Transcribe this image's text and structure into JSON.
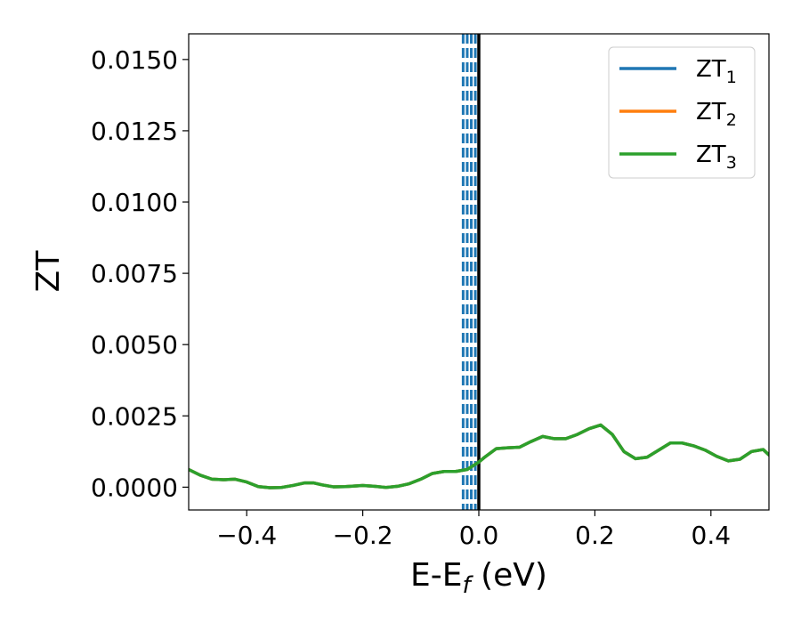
{
  "chart_data": {
    "type": "line",
    "title": "",
    "xlabel_main": "E-E",
    "xlabel_sub": "f",
    "xlabel_unit": " (eV)",
    "ylabel": "ZT",
    "xlim": [
      -0.5,
      0.5
    ],
    "ylim": [
      -0.0008,
      0.0159
    ],
    "xticks": [
      -0.4,
      -0.2,
      0.0,
      0.2,
      0.4
    ],
    "xtick_labels": [
      "−0.4",
      "−0.2",
      "0.0",
      "0.2",
      "0.4"
    ],
    "yticks": [
      0.0,
      0.0025,
      0.005,
      0.0075,
      0.01,
      0.0125,
      0.015
    ],
    "ytick_labels": [
      "0.0000",
      "0.0025",
      "0.0050",
      "0.0075",
      "0.0100",
      "0.0125",
      "0.0150"
    ],
    "grid": false,
    "legend_position": "top-right",
    "x": [
      -0.5,
      -0.48,
      -0.46,
      -0.44,
      -0.42,
      -0.4,
      -0.38,
      -0.36,
      -0.34,
      -0.32,
      -0.3,
      -0.285,
      -0.27,
      -0.25,
      -0.23,
      -0.2,
      -0.18,
      -0.16,
      -0.14,
      -0.12,
      -0.1,
      -0.08,
      -0.06,
      -0.04,
      -0.02,
      0.0,
      0.01,
      0.03,
      0.05,
      0.07,
      0.09,
      0.11,
      0.13,
      0.15,
      0.17,
      0.19,
      0.21,
      0.23,
      0.25,
      0.27,
      0.29,
      0.31,
      0.33,
      0.35,
      0.37,
      0.39,
      0.41,
      0.43,
      0.45,
      0.47,
      0.49,
      0.5
    ],
    "series": [
      {
        "name": "ZT",
        "name_sub": "1",
        "color": "#1f77b4",
        "values": [
          0.00062,
          0.00042,
          0.00028,
          0.00026,
          0.00028,
          0.00018,
          2e-05,
          -2e-05,
          -1e-05,
          6e-05,
          0.00015,
          0.00015,
          8e-05,
          1e-05,
          2e-05,
          6e-05,
          3e-05,
          -1e-05,
          3e-05,
          0.00012,
          0.00028,
          0.00048,
          0.00055,
          0.00055,
          0.00062,
          0.00088,
          0.00105,
          0.00135,
          0.00138,
          0.0014,
          0.0016,
          0.00178,
          0.0017,
          0.0017,
          0.00185,
          0.00205,
          0.00218,
          0.00185,
          0.00125,
          0.001,
          0.00105,
          0.0013,
          0.00155,
          0.00155,
          0.00145,
          0.0013,
          0.00108,
          0.00092,
          0.00098,
          0.00125,
          0.00132,
          0.00113
        ]
      },
      {
        "name": "ZT",
        "name_sub": "2",
        "color": "#ff7f0e",
        "values": [
          0.00062,
          0.00042,
          0.00028,
          0.00026,
          0.00028,
          0.00018,
          2e-05,
          -2e-05,
          -1e-05,
          6e-05,
          0.00015,
          0.00015,
          8e-05,
          1e-05,
          2e-05,
          6e-05,
          3e-05,
          -1e-05,
          3e-05,
          0.00012,
          0.00028,
          0.00048,
          0.00055,
          0.00055,
          0.00062,
          0.00088,
          0.00105,
          0.00135,
          0.00138,
          0.0014,
          0.0016,
          0.00178,
          0.0017,
          0.0017,
          0.00185,
          0.00205,
          0.00218,
          0.00185,
          0.00125,
          0.001,
          0.00105,
          0.0013,
          0.00155,
          0.00155,
          0.00145,
          0.0013,
          0.00108,
          0.00092,
          0.00098,
          0.00125,
          0.00132,
          0.00113
        ]
      },
      {
        "name": "ZT",
        "name_sub": "3",
        "color": "#2ca02c",
        "values": [
          0.00062,
          0.00042,
          0.00028,
          0.00026,
          0.00028,
          0.00018,
          2e-05,
          -2e-05,
          -1e-05,
          6e-05,
          0.00015,
          0.00015,
          8e-05,
          1e-05,
          2e-05,
          6e-05,
          3e-05,
          -1e-05,
          3e-05,
          0.00012,
          0.00028,
          0.00048,
          0.00055,
          0.00055,
          0.00062,
          0.00088,
          0.00105,
          0.00135,
          0.00138,
          0.0014,
          0.0016,
          0.00178,
          0.0017,
          0.0017,
          0.00185,
          0.00205,
          0.00218,
          0.00185,
          0.00125,
          0.001,
          0.00105,
          0.0013,
          0.00155,
          0.00155,
          0.00145,
          0.0013,
          0.00108,
          0.00092,
          0.00098,
          0.00125,
          0.00132,
          0.00113
        ]
      }
    ],
    "vlines": [
      {
        "x": -0.027,
        "style": "dashed",
        "color": "#1f77b4"
      },
      {
        "x": -0.02,
        "style": "dashed",
        "color": "#1f77b4"
      },
      {
        "x": -0.013,
        "style": "dashed",
        "color": "#1f77b4"
      },
      {
        "x": -0.006,
        "style": "dashed",
        "color": "#1f77b4"
      },
      {
        "x": 0.0,
        "style": "solid",
        "color": "#000000"
      }
    ]
  }
}
